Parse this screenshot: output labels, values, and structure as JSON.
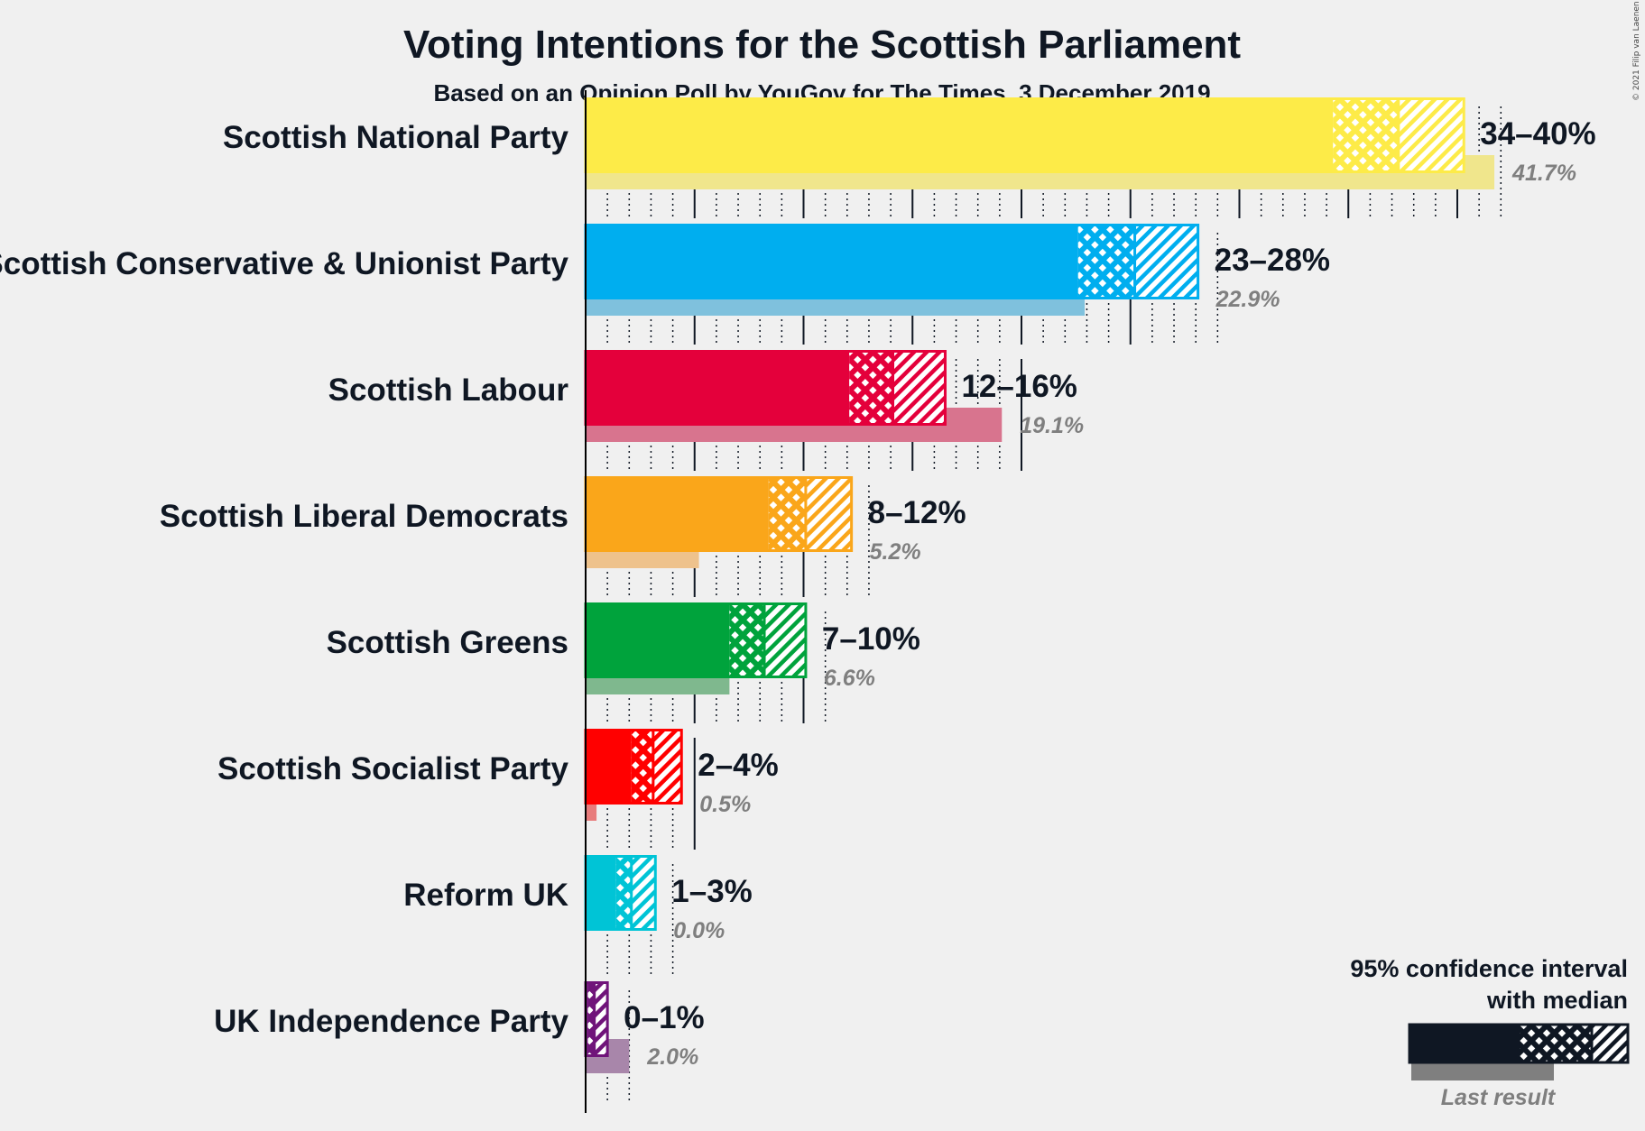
{
  "chart_data": {
    "type": "bar",
    "orientation": "horizontal",
    "title": "Voting Intentions for the Scottish Parliament",
    "subtitle": "Based on an Opinion Poll by YouGov for The Times, 3 December 2019",
    "copyright": "© 2021 Filip van Laenen",
    "xlim": [
      0,
      42
    ],
    "grid": true,
    "legend_position": "bottom-right",
    "categories": [
      "Scottish National Party",
      "Scottish Conservative & Unionist Party",
      "Scottish Labour",
      "Scottish Liberal Democrats",
      "Scottish Greens",
      "Scottish Socialist Party",
      "Reform UK",
      "UK Independence Party"
    ],
    "series": [
      {
        "key": "snp",
        "party": "Scottish National Party",
        "color": "#fdeb48",
        "last_color": "#f0e68c",
        "ci_low": 34.3,
        "ci_mid_low": 34.3,
        "median": 37.3,
        "ci_high": 40.3,
        "range_label": "34–40%",
        "last_result": 41.7,
        "last_label": "41.7%"
      },
      {
        "key": "con",
        "party": "Scottish Conservative & Unionist Party",
        "color": "#00aeef",
        "last_color": "#7fc1dd",
        "ci_low": 22.6,
        "median": 25.2,
        "ci_high": 28.1,
        "range_label": "23–28%",
        "last_result": 22.9,
        "last_label": "22.9%"
      },
      {
        "key": "lab",
        "party": "Scottish Labour",
        "color": "#e4003b",
        "last_color": "#d8748e",
        "ci_low": 12.1,
        "median": 14.1,
        "ci_high": 16.5,
        "range_label": "12–16%",
        "last_result": 19.1,
        "last_label": "19.1%"
      },
      {
        "key": "ld",
        "party": "Scottish Liberal Democrats",
        "color": "#faa61a",
        "last_color": "#eec28c",
        "ci_low": 8.4,
        "median": 10.1,
        "ci_high": 12.2,
        "range_label": "8–12%",
        "last_result": 5.2,
        "last_label": "5.2%"
      },
      {
        "key": "grn",
        "party": "Scottish Greens",
        "color": "#00a33c",
        "last_color": "#7fb88e",
        "ci_low": 6.6,
        "median": 8.2,
        "ci_high": 10.1,
        "range_label": "7–10%",
        "last_result": 6.6,
        "last_label": "6.6%"
      },
      {
        "key": "ssp",
        "party": "Scottish Socialist Party",
        "color": "#ff0000",
        "last_color": "#e87c7c",
        "ci_low": 2.1,
        "median": 3.1,
        "ci_high": 4.4,
        "range_label": "2–4%",
        "last_result": 0.5,
        "last_label": "0.5%"
      },
      {
        "key": "ref",
        "party": "Reform UK",
        "color": "#00c4d6",
        "last_color": "#7fd9e2",
        "ci_low": 1.4,
        "median": 2.1,
        "ci_high": 3.2,
        "range_label": "1–3%",
        "last_result": 0.0,
        "last_label": "0.0%"
      },
      {
        "key": "ukip",
        "party": "UK Independence Party",
        "color": "#70147a",
        "last_color": "#a886aa",
        "ci_low": 0.1,
        "median": 0.4,
        "ci_high": 1.0,
        "range_label": "0–1%",
        "last_result": 2.0,
        "last_label": "2.0%"
      }
    ]
  },
  "legend": {
    "line1": "95% confidence interval",
    "line2": "with median",
    "last_result_label": "Last result"
  }
}
